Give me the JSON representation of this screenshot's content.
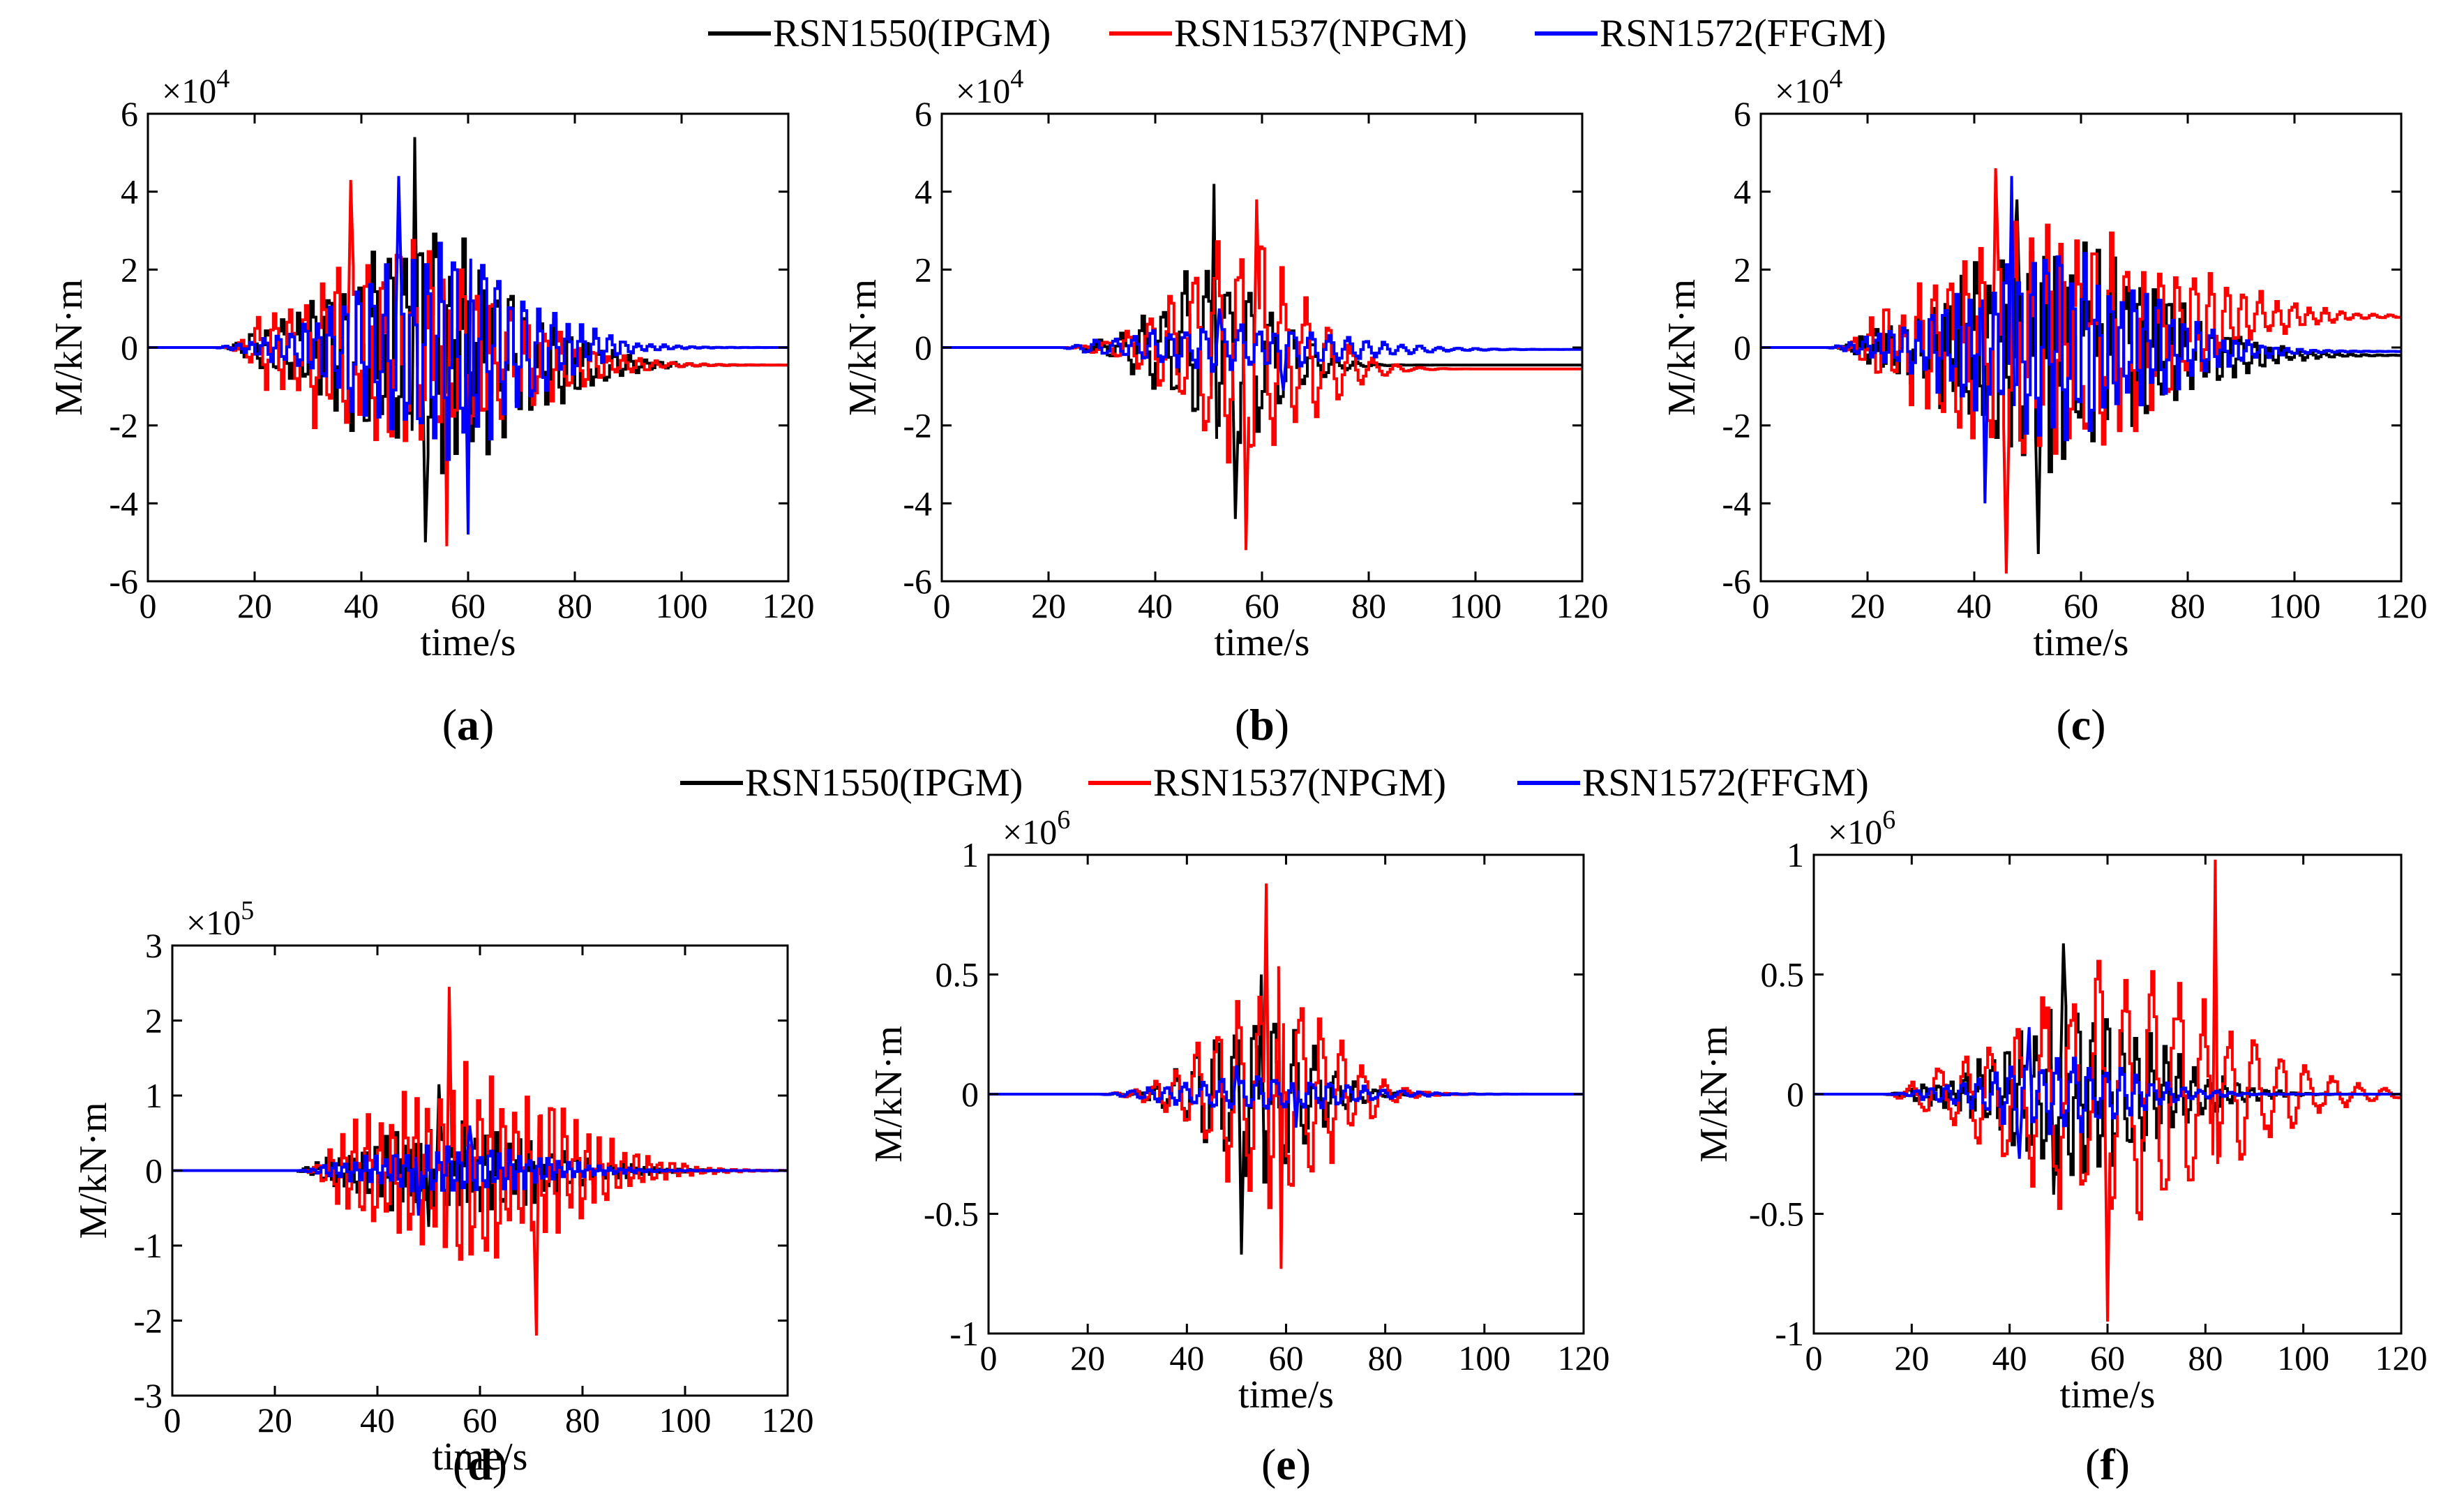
{
  "colors": {
    "IPGM": "#000000",
    "NPGM": "#ff0000",
    "FFGM": "#0000ff"
  },
  "legends": [
    {
      "entries": [
        "RSN1550(IPGM)",
        "RSN1537(NPGM)",
        "RSN1572(FFGM)"
      ]
    },
    {
      "entries": [
        "RSN1550(IPGM)",
        "RSN1537(NPGM)",
        "RSN1572(FFGM)"
      ]
    }
  ],
  "chart_data": [
    {
      "id": "a",
      "type": "line",
      "caption": "a",
      "xlabel": "time/s",
      "ylabel": "M/kN·m",
      "xlim": [
        0,
        120
      ],
      "ylim": [
        -6,
        6
      ],
      "scale_label": "×10",
      "scale_exp": "4",
      "xticks": [
        "0",
        "20",
        "40",
        "60",
        "80",
        "100",
        "120"
      ],
      "yticks": [
        "-6",
        "-4",
        "-2",
        "0",
        "2",
        "4",
        "6"
      ],
      "series": [
        {
          "name": "RSN1550(IPGM)",
          "key": "IPGM",
          "start": 14,
          "env_center": 52,
          "env_width": 24,
          "peak_pos": 5.4,
          "peak_neg": -5.0,
          "peak_pos_t": 50,
          "peak_neg_t": 52,
          "period": 2.8,
          "drift": -0.45,
          "seed": 11
        },
        {
          "name": "RSN1537(NPGM)",
          "key": "NPGM",
          "start": 15,
          "env_center": 48,
          "env_width": 26,
          "peak_pos": 4.3,
          "peak_neg": -5.1,
          "peak_pos_t": 38,
          "peak_neg_t": 56,
          "period": 3.0,
          "drift": -0.45,
          "seed": 23
        },
        {
          "name": "RSN1572(FFGM)",
          "key": "FFGM",
          "start": 12,
          "env_center": 54,
          "env_width": 22,
          "peak_pos": 4.4,
          "peak_neg": -4.8,
          "peak_pos_t": 47,
          "peak_neg_t": 60,
          "period": 2.6,
          "drift": 0.0,
          "seed": 37
        }
      ]
    },
    {
      "id": "b",
      "type": "line",
      "caption": "b",
      "xlabel": "time/s",
      "ylabel": "M/kN·m",
      "xlim": [
        0,
        120
      ],
      "ylim": [
        -6,
        6
      ],
      "scale_label": "×10",
      "scale_exp": "4",
      "xticks": [
        "0",
        "20",
        "40",
        "60",
        "80",
        "100",
        "120"
      ],
      "yticks": [
        "-6",
        "-4",
        "-2",
        "0",
        "2",
        "4",
        "6"
      ],
      "series": [
        {
          "name": "RSN1550(IPGM)",
          "key": "IPGM",
          "start": 22,
          "env_center": 52,
          "env_width": 14,
          "peak_pos": 4.2,
          "peak_neg": -4.4,
          "peak_pos_t": 51,
          "peak_neg_t": 55,
          "period": 4.0,
          "drift": -0.45,
          "seed": 41
        },
        {
          "name": "RSN1537(NPGM)",
          "key": "NPGM",
          "start": 22,
          "env_center": 56,
          "env_width": 16,
          "peak_pos": 3.8,
          "peak_neg": -5.2,
          "peak_pos_t": 59,
          "peak_neg_t": 57,
          "period": 4.2,
          "drift": -0.55,
          "seed": 53
        },
        {
          "name": "RSN1572(FFGM)",
          "key": "FFGM",
          "start": 22,
          "env_center": 55,
          "env_width": 25,
          "peak_pos": 1.0,
          "peak_neg": -1.1,
          "peak_pos_t": 52,
          "peak_neg_t": 64,
          "period": 3.4,
          "drift": -0.05,
          "seed": 67
        }
      ]
    },
    {
      "id": "c",
      "type": "line",
      "caption": "c",
      "xlabel": "time/s",
      "ylabel": "M/kN·m",
      "xlim": [
        0,
        120
      ],
      "ylim": [
        -6,
        6
      ],
      "scale_label": "×10",
      "scale_exp": "4",
      "xticks": [
        "0",
        "20",
        "40",
        "60",
        "80",
        "100",
        "120"
      ],
      "yticks": [
        "-6",
        "-4",
        "-2",
        "0",
        "2",
        "4",
        "6"
      ],
      "series": [
        {
          "name": "RSN1550(IPGM)",
          "key": "IPGM",
          "start": 14,
          "env_center": 55,
          "env_width": 26,
          "peak_pos": 3.8,
          "peak_neg": -5.3,
          "peak_pos_t": 48,
          "peak_neg_t": 52,
          "period": 2.6,
          "drift": -0.2,
          "seed": 71
        },
        {
          "name": "RSN1537(NPGM)",
          "key": "NPGM",
          "start": 15,
          "env_center": 55,
          "env_width": 30,
          "peak_pos": 4.6,
          "peak_neg": -5.8,
          "peak_pos_t": 44,
          "peak_neg_t": 46,
          "period": 3.0,
          "drift": 0.8,
          "seed": 83
        },
        {
          "name": "RSN1572(FFGM)",
          "key": "FFGM",
          "start": 12,
          "env_center": 55,
          "env_width": 24,
          "peak_pos": 4.4,
          "peak_neg": -4.0,
          "peak_pos_t": 47,
          "peak_neg_t": 42,
          "period": 2.4,
          "drift": -0.1,
          "seed": 97
        }
      ]
    },
    {
      "id": "d",
      "type": "line",
      "caption": "d",
      "xlabel": "time/s",
      "ylabel": "M/kN·m",
      "xlim": [
        0,
        120
      ],
      "ylim": [
        -3,
        3
      ],
      "scale_label": "×10",
      "scale_exp": "5",
      "xticks": [
        "0",
        "20",
        "40",
        "60",
        "80",
        "100",
        "120"
      ],
      "yticks": [
        "-3",
        "-2",
        "-1",
        "0",
        "1",
        "2",
        "3"
      ],
      "series": [
        {
          "name": "RSN1550(IPGM)",
          "key": "IPGM",
          "start": 24,
          "env_center": 55,
          "env_width": 24,
          "peak_pos": 1.15,
          "peak_neg": -0.75,
          "peak_pos_t": 52,
          "peak_neg_t": 50,
          "period": 2.2,
          "drift": 0.0,
          "seed": 101
        },
        {
          "name": "RSN1537(NPGM)",
          "key": "NPGM",
          "start": 26,
          "env_center": 58,
          "env_width": 25,
          "peak_pos": 2.45,
          "peak_neg": -2.2,
          "peak_pos_t": 54,
          "peak_neg_t": 71,
          "period": 2.4,
          "drift": 0.0,
          "seed": 113
        },
        {
          "name": "RSN1572(FFGM)",
          "key": "FFGM",
          "start": 24,
          "env_center": 55,
          "env_width": 22,
          "peak_pos": 0.6,
          "peak_neg": -0.6,
          "peak_pos_t": 58,
          "peak_neg_t": 48,
          "period": 2.0,
          "drift": 0.0,
          "seed": 127
        }
      ]
    },
    {
      "id": "e",
      "type": "line",
      "caption": "e",
      "xlabel": "time/s",
      "ylabel": "M/kN·m",
      "xlim": [
        0,
        120
      ],
      "ylim": [
        -1,
        1
      ],
      "scale_label": "×10",
      "scale_exp": "6",
      "xticks": [
        "0",
        "20",
        "40",
        "60",
        "80",
        "100",
        "120"
      ],
      "yticks": [
        "-1",
        "-0.5",
        "0",
        "0.5",
        "1"
      ],
      "series": [
        {
          "name": "RSN1550(IPGM)",
          "key": "IPGM",
          "start": 22,
          "env_center": 54,
          "env_width": 14,
          "peak_pos": 0.5,
          "peak_neg": -0.67,
          "peak_pos_t": 55,
          "peak_neg_t": 51,
          "period": 4.0,
          "drift": 0.0,
          "seed": 131
        },
        {
          "name": "RSN1537(NPGM)",
          "key": "NPGM",
          "start": 22,
          "env_center": 57,
          "env_width": 16,
          "peak_pos": 0.88,
          "peak_neg": -0.73,
          "peak_pos_t": 56,
          "peak_neg_t": 59,
          "period": 4.2,
          "drift": 0.0,
          "seed": 139
        },
        {
          "name": "RSN1572(FFGM)",
          "key": "FFGM",
          "start": 22,
          "env_center": 55,
          "env_width": 22,
          "peak_pos": 0.12,
          "peak_neg": -0.14,
          "peak_pos_t": 50,
          "peak_neg_t": 62,
          "period": 3.6,
          "drift": 0.0,
          "seed": 149
        }
      ]
    },
    {
      "id": "f",
      "type": "line",
      "caption": "f",
      "xlabel": "time/s",
      "ylabel": "M/kN·m",
      "xlim": [
        0,
        120
      ],
      "ylim": [
        -1,
        1
      ],
      "scale_label": "×10",
      "scale_exp": "6",
      "xticks": [
        "0",
        "20",
        "40",
        "60",
        "80",
        "100",
        "120"
      ],
      "yticks": [
        "-1",
        "-0.5",
        "0",
        "0.5",
        "1"
      ],
      "series": [
        {
          "name": "RSN1550(IPGM)",
          "key": "IPGM",
          "start": 14,
          "env_center": 55,
          "env_width": 22,
          "peak_pos": 0.63,
          "peak_neg": -0.42,
          "peak_pos_t": 51,
          "peak_neg_t": 49,
          "period": 3.0,
          "drift": 0.0,
          "seed": 151
        },
        {
          "name": "RSN1537(NPGM)",
          "key": "NPGM",
          "start": 15,
          "env_center": 63,
          "env_width": 30,
          "peak_pos": 0.98,
          "peak_neg": -0.95,
          "peak_pos_t": 82,
          "peak_neg_t": 60,
          "period": 5.4,
          "drift": 0.0,
          "seed": 163
        },
        {
          "name": "RSN1572(FFGM)",
          "key": "FFGM",
          "start": 15,
          "env_center": 50,
          "env_width": 20,
          "peak_pos": 0.28,
          "peak_neg": -0.27,
          "peak_pos_t": 44,
          "peak_neg_t": 42,
          "period": 3.2,
          "drift": 0.0,
          "seed": 173
        }
      ]
    }
  ]
}
